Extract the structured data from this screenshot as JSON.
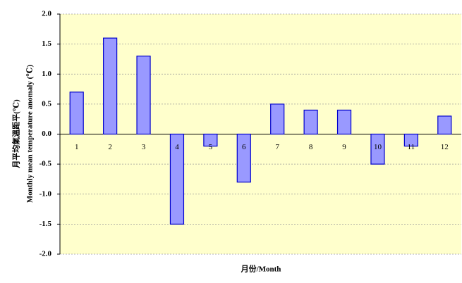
{
  "chart_data": {
    "type": "bar",
    "y_label_zh": "月平均氣溫距平(℃)",
    "y_label": "Monthly mean temperature anomaly (℃)",
    "x_label": "月份/Month",
    "categories": [
      "1",
      "2",
      "3",
      "4",
      "5",
      "6",
      "7",
      "8",
      "9",
      "10",
      "11",
      "12"
    ],
    "values": [
      0.7,
      1.6,
      1.3,
      -1.5,
      -0.2,
      -0.8,
      0.5,
      0.4,
      0.4,
      -0.5,
      -0.2,
      0.3
    ],
    "color": "#9999ff",
    "ylim": [
      -2.0,
      2.0
    ],
    "yticks": [
      {
        "value": -2,
        "label": "-2.0"
      },
      -1.5,
      {
        "value": -1,
        "label": "-1.0"
      },
      -0.5,
      {
        "value": 0,
        "label": "0.0"
      },
      0.5,
      {
        "value": 1,
        "label": "1.0"
      },
      1.5,
      {
        "value": 2,
        "label": "2.0"
      }
    ],
    "grid": true
  }
}
